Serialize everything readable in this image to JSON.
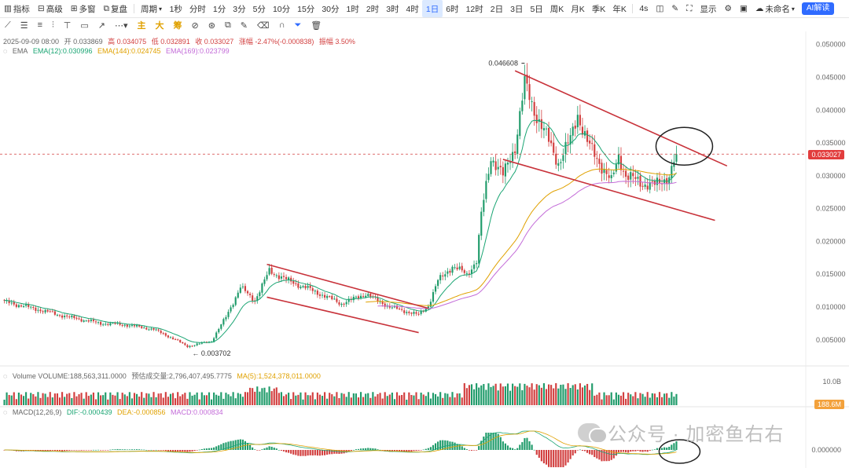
{
  "toolbar": {
    "indicators": "指标",
    "advanced": "高级",
    "multi_window": "多窗",
    "replay": "复盘",
    "period_label": "周期",
    "periods": [
      "1秒",
      "分时",
      "1分",
      "3分",
      "5分",
      "10分",
      "15分",
      "30分",
      "1时",
      "2时",
      "3时",
      "4时",
      "1日",
      "6时",
      "12时",
      "2日",
      "3日",
      "5日",
      "周K",
      "月K",
      "季K",
      "年K"
    ],
    "active_period": "1日",
    "refresh": "4s",
    "display": "显示",
    "unnamed": "未命名",
    "ai_label": "AI解读"
  },
  "drawbar": {
    "main": "主",
    "large": "大",
    "chip": "筹"
  },
  "info": {
    "date": "2025-09-09 08:00",
    "open": "开 0.033869",
    "high": "高 0.034075",
    "low": "低 0.032891",
    "close": "收 0.033027",
    "change": "涨幅 -2.47%(-0.000838)",
    "amplitude": "振幅 3.50%"
  },
  "ema_legend": {
    "name": "EMA",
    "ema12": "EMA(12):0.030996",
    "ema144": "EMA(144):0.024745",
    "ema169": "EMA(169):0.023799"
  },
  "volume_legend": {
    "volume": "Volume  VOLUME:188,563,311.0000",
    "estimate": "预估成交量:2,796,407,495.7775",
    "ma5": "MA(5):1,524,378,011.0000"
  },
  "macd_legend": {
    "name": "MACD(12,26,9)",
    "dif": "DIF:-0.000439",
    "dea": "DEA:-0.000856",
    "macd": "MACD:0.000834"
  },
  "price_tag": "0.033027",
  "volume_tag": "188.6M",
  "volume_axis_label": "10.0B",
  "macd_axis_label": "0.000000",
  "annotations": {
    "high": "0.046608",
    "low": "0.003702"
  },
  "watermark": "公众号 · 加密鱼右右",
  "colors": {
    "up": "#1f9b6a",
    "down": "#d23f3f",
    "ema12": "#1aa573",
    "ema144": "#e0a100",
    "ema169": "#c36bd8",
    "trendline": "#c8323a",
    "accent": "#2f6bff"
  },
  "chart_data": {
    "type": "candlestick",
    "yaxis_ticks": [
      0.05,
      0.045,
      0.04,
      0.035,
      0.03,
      0.025,
      0.02,
      0.015,
      0.01,
      0.005
    ],
    "ylim": [
      0.0015,
      0.052
    ],
    "close_anchors": [
      [
        0,
        0.0108
      ],
      [
        12,
        0.0098
      ],
      [
        25,
        0.0086
      ],
      [
        40,
        0.0075
      ],
      [
        50,
        0.0073
      ],
      [
        62,
        0.0066
      ],
      [
        70,
        0.0052
      ],
      [
        76,
        0.004
      ],
      [
        86,
        0.0048
      ],
      [
        92,
        0.0085
      ],
      [
        98,
        0.013
      ],
      [
        104,
        0.011
      ],
      [
        110,
        0.0155
      ],
      [
        118,
        0.014
      ],
      [
        128,
        0.0125
      ],
      [
        140,
        0.0105
      ],
      [
        150,
        0.012
      ],
      [
        160,
        0.01
      ],
      [
        172,
        0.0088
      ],
      [
        176,
        0.0102
      ],
      [
        180,
        0.014
      ],
      [
        186,
        0.0162
      ],
      [
        192,
        0.015
      ],
      [
        196,
        0.017
      ],
      [
        198,
        0.024
      ],
      [
        202,
        0.033
      ],
      [
        207,
        0.03
      ],
      [
        212,
        0.0345
      ],
      [
        216,
        0.044
      ],
      [
        220,
        0.04
      ],
      [
        225,
        0.036
      ],
      [
        230,
        0.032
      ],
      [
        235,
        0.0355
      ],
      [
        238,
        0.0395
      ],
      [
        242,
        0.035
      ],
      [
        248,
        0.0315
      ],
      [
        252,
        0.029
      ],
      [
        255,
        0.033
      ],
      [
        258,
        0.03
      ],
      [
        264,
        0.029
      ],
      [
        270,
        0.0285
      ],
      [
        276,
        0.03
      ],
      [
        279,
        0.0333
      ]
    ]
  }
}
